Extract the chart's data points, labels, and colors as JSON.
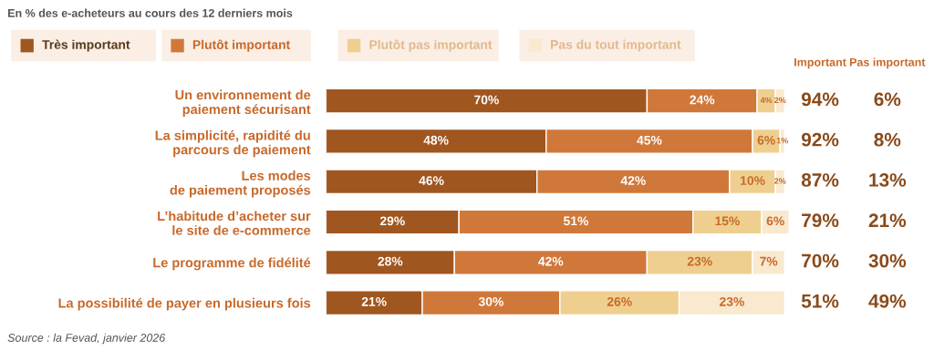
{
  "chart_data": {
    "type": "bar",
    "orientation": "horizontal",
    "stacked": true,
    "title": "En % des e-acheteurs au cours des 12 derniers mois",
    "categories": [
      "Un environnement de\npaiement sécurisant",
      "La simplicité, rapidité du\nparcours de paiement",
      "Les modes\nde paiement proposés",
      "L’habitude d’acheter sur\nle site de e-commerce",
      "Le programme de fidélité",
      "La possibilité de payer en plusieurs fois"
    ],
    "series": [
      {
        "name": "Très important",
        "color": "#a0561f",
        "values": [
          70,
          48,
          46,
          29,
          28,
          21
        ],
        "value_labels": [
          "70%",
          "48%",
          "46%",
          "29%",
          "28%",
          "21%"
        ]
      },
      {
        "name": "Plutôt important",
        "color": "#d0783a",
        "values": [
          24,
          45,
          42,
          51,
          42,
          30
        ],
        "value_labels": [
          "24%",
          "45%",
          "42%",
          "51%",
          "42%",
          "30%"
        ]
      },
      {
        "name": "Plutôt pas important",
        "color": "#efcf8f",
        "values": [
          4,
          6,
          10,
          15,
          23,
          26
        ],
        "value_labels": [
          "4%",
          "6%",
          "10%",
          "15%",
          "23%",
          "26%"
        ]
      },
      {
        "name": "Pas du tout important",
        "color": "#f8e9cf",
        "values": [
          2,
          1,
          2,
          6,
          7,
          23
        ],
        "value_labels": [
          "2%",
          "1%",
          "2%",
          "6%",
          "7%",
          "23%"
        ]
      }
    ],
    "legend": "top left",
    "annotations": [
      "Important",
      "Pas important",
      "94%",
      "92%",
      "87%",
      "79%",
      "70%",
      "51%",
      "6%",
      "8%",
      "13%",
      "21%",
      "30%",
      "49%",
      "Source : la Fevad, janvier 2026"
    ]
  }
}
